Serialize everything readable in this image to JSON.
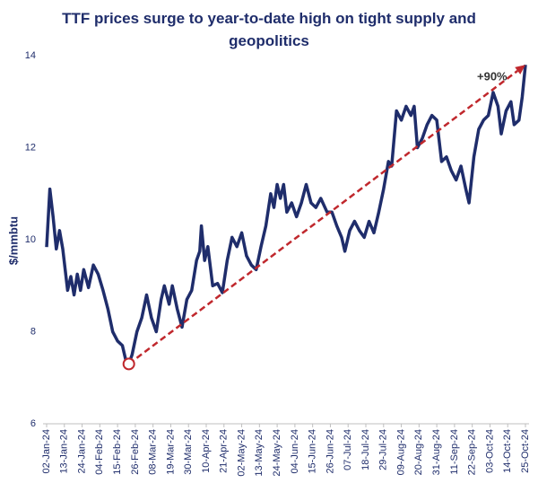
{
  "chart_data": {
    "type": "line",
    "title": "TTF prices surge to year-to-date high on tight supply and geopolitics",
    "y_label": "$/mmbtu",
    "x": [
      "2024-01-02",
      "2024-01-04",
      "2024-01-06",
      "2024-01-08",
      "2024-01-10",
      "2024-01-12",
      "2024-01-15",
      "2024-01-17",
      "2024-01-19",
      "2024-01-21",
      "2024-01-23",
      "2024-01-25",
      "2024-01-28",
      "2024-01-31",
      "2024-02-03",
      "2024-02-06",
      "2024-02-09",
      "2024-02-12",
      "2024-02-15",
      "2024-02-18",
      "2024-02-20",
      "2024-02-22",
      "2024-02-24",
      "2024-02-27",
      "2024-03-01",
      "2024-03-04",
      "2024-03-07",
      "2024-03-10",
      "2024-03-13",
      "2024-03-15",
      "2024-03-18",
      "2024-03-20",
      "2024-03-23",
      "2024-03-26",
      "2024-03-29",
      "2024-04-01",
      "2024-04-04",
      "2024-04-06",
      "2024-04-07",
      "2024-04-09",
      "2024-04-11",
      "2024-04-14",
      "2024-04-17",
      "2024-04-20",
      "2024-04-23",
      "2024-04-26",
      "2024-04-29",
      "2024-05-02",
      "2024-05-05",
      "2024-05-08",
      "2024-05-11",
      "2024-05-14",
      "2024-05-17",
      "2024-05-20",
      "2024-05-22",
      "2024-05-24",
      "2024-05-26",
      "2024-05-28",
      "2024-05-30",
      "2024-06-02",
      "2024-06-05",
      "2024-06-08",
      "2024-06-11",
      "2024-06-14",
      "2024-06-17",
      "2024-06-20",
      "2024-06-24",
      "2024-06-27",
      "2024-06-30",
      "2024-07-03",
      "2024-07-05",
      "2024-07-08",
      "2024-07-11",
      "2024-07-14",
      "2024-07-17",
      "2024-07-20",
      "2024-07-23",
      "2024-07-26",
      "2024-07-29",
      "2024-08-01",
      "2024-08-03",
      "2024-08-06",
      "2024-08-09",
      "2024-08-12",
      "2024-08-15",
      "2024-08-17",
      "2024-08-19",
      "2024-08-22",
      "2024-08-25",
      "2024-08-28",
      "2024-08-31",
      "2024-09-03",
      "2024-09-06",
      "2024-09-09",
      "2024-09-12",
      "2024-09-15",
      "2024-09-18",
      "2024-09-20",
      "2024-09-23",
      "2024-09-26",
      "2024-09-29",
      "2024-10-02",
      "2024-10-05",
      "2024-10-08",
      "2024-10-10",
      "2024-10-13",
      "2024-10-16",
      "2024-10-18",
      "2024-10-21",
      "2024-10-23",
      "2024-10-25"
    ],
    "series": [
      {
        "name": "TTF",
        "color": "#1f2d6b",
        "values": [
          9.84,
          11.1,
          10.5,
          9.8,
          10.2,
          9.8,
          8.9,
          9.2,
          8.8,
          9.25,
          8.9,
          9.35,
          8.96,
          9.45,
          9.25,
          8.9,
          8.5,
          8.0,
          7.8,
          7.7,
          7.4,
          7.3,
          7.5,
          8.0,
          8.3,
          8.8,
          8.3,
          8.0,
          8.7,
          9.0,
          8.6,
          9.0,
          8.5,
          8.1,
          8.7,
          8.9,
          9.55,
          9.75,
          10.3,
          9.55,
          9.85,
          9.0,
          9.05,
          8.85,
          9.55,
          10.05,
          9.85,
          10.15,
          9.65,
          9.45,
          9.35,
          9.85,
          10.3,
          11.0,
          10.7,
          11.2,
          10.9,
          11.2,
          10.6,
          10.8,
          10.5,
          10.8,
          11.2,
          10.8,
          10.7,
          10.9,
          10.6,
          10.6,
          10.3,
          10.05,
          9.75,
          10.2,
          10.4,
          10.2,
          10.05,
          10.4,
          10.15,
          10.6,
          11.1,
          11.7,
          11.6,
          12.8,
          12.6,
          12.9,
          12.7,
          12.9,
          12.0,
          12.2,
          12.5,
          12.7,
          12.6,
          11.7,
          11.8,
          11.5,
          11.3,
          11.6,
          11.1,
          10.8,
          11.8,
          12.4,
          12.6,
          12.7,
          13.2,
          12.9,
          12.3,
          12.8,
          13.0,
          12.5,
          12.6,
          13.1,
          13.8
        ]
      }
    ],
    "annotation": {
      "text": "+90%",
      "from_x": "2024-02-22",
      "to_x": "2024-10-25",
      "color": "#c0282d"
    },
    "xlim": [
      "2024-01-02",
      "2024-10-25"
    ],
    "xticks": [
      {
        "value": "2024-01-02",
        "label": "02-Jan-24"
      },
      {
        "value": "2024-01-13",
        "label": "13-Jan-24"
      },
      {
        "value": "2024-01-24",
        "label": "24-Jan-24"
      },
      {
        "value": "2024-02-04",
        "label": "04-Feb-24"
      },
      {
        "value": "2024-02-15",
        "label": "15-Feb-24"
      },
      {
        "value": "2024-02-26",
        "label": "26-Feb-24"
      },
      {
        "value": "2024-03-08",
        "label": "08-Mar-24"
      },
      {
        "value": "2024-03-19",
        "label": "19-Mar-24"
      },
      {
        "value": "2024-03-30",
        "label": "30-Mar-24"
      },
      {
        "value": "2024-04-10",
        "label": "10-Apr-24"
      },
      {
        "value": "2024-04-21",
        "label": "21-Apr-24"
      },
      {
        "value": "2024-05-02",
        "label": "02-May-24"
      },
      {
        "value": "2024-05-13",
        "label": "13-May-24"
      },
      {
        "value": "2024-05-24",
        "label": "24-May-24"
      },
      {
        "value": "2024-06-04",
        "label": "04-Jun-24"
      },
      {
        "value": "2024-06-15",
        "label": "15-Jun-24"
      },
      {
        "value": "2024-06-26",
        "label": "26-Jun-24"
      },
      {
        "value": "2024-07-07",
        "label": "07-Jul-24"
      },
      {
        "value": "2024-07-18",
        "label": "18-Jul-24"
      },
      {
        "value": "2024-07-29",
        "label": "29-Jul-24"
      },
      {
        "value": "2024-08-09",
        "label": "09-Aug-24"
      },
      {
        "value": "2024-08-20",
        "label": "20-Aug-24"
      },
      {
        "value": "2024-08-31",
        "label": "31-Aug-24"
      },
      {
        "value": "2024-09-11",
        "label": "11-Sep-24"
      },
      {
        "value": "2024-09-22",
        "label": "22-Sep-24"
      },
      {
        "value": "2024-10-03",
        "label": "03-Oct-24"
      },
      {
        "value": "2024-10-14",
        "label": "14-Oct-24"
      },
      {
        "value": "2024-10-25",
        "label": "25-Oct-24"
      }
    ],
    "ylim": [
      6,
      14
    ],
    "yticks": [
      6,
      8,
      10,
      12,
      14
    ],
    "grid": false
  }
}
